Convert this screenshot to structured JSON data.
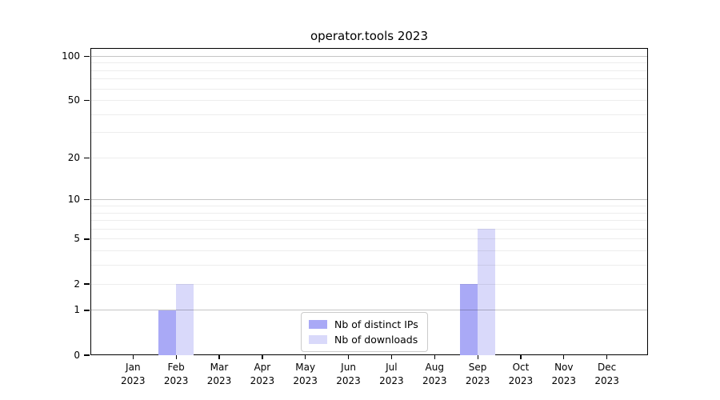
{
  "title": "operator.tools 2023",
  "colors": {
    "background": "#ffffff",
    "bar_distinct_ips": "#a9a9f6",
    "bar_downloads": "#d9d9fa",
    "grid_major": "#c4c4c4",
    "grid_minor": "#ececec",
    "axis": "#000000",
    "legend_border": "#cbcbcb"
  },
  "legend": {
    "items": [
      {
        "label": "Nb of distinct IPs",
        "swatch": "bar-swatch"
      },
      {
        "label": "Nb of downloads",
        "swatch": "bar-swatch"
      }
    ],
    "position": "lower center"
  },
  "chart_data": {
    "type": "bar",
    "title": "operator.tools 2023",
    "categories": [
      "Jan 2023",
      "Feb 2023",
      "Mar 2023",
      "Apr 2023",
      "May 2023",
      "Jun 2023",
      "Jul 2023",
      "Aug 2023",
      "Sep 2023",
      "Oct 2023",
      "Nov 2023",
      "Dec 2023"
    ],
    "series": [
      {
        "name": "Nb of distinct IPs",
        "color": "#a9a9f6",
        "values": [
          0,
          1,
          0,
          0,
          0,
          0,
          0,
          0,
          2,
          0,
          0,
          0
        ]
      },
      {
        "name": "Nb of downloads",
        "color": "#d9d9fa",
        "values": [
          0,
          2,
          0,
          0,
          0,
          0,
          0,
          0,
          6,
          0,
          0,
          0
        ]
      }
    ],
    "xlabel": "",
    "ylabel": "",
    "yscale": "log1p",
    "ylim": [
      0,
      117
    ],
    "y_tick_values": [
      0,
      1,
      2,
      5,
      10,
      20,
      50,
      100
    ],
    "y_tick_labels": [
      "0",
      "1",
      "2",
      "5",
      "10",
      "20",
      "50",
      "100"
    ],
    "y_major_gridlines": [
      1,
      10,
      100
    ],
    "y_minor_gridlines": [
      2,
      3,
      4,
      5,
      6,
      7,
      8,
      9,
      20,
      30,
      40,
      50,
      60,
      70,
      80,
      90
    ],
    "grid": "horizontal",
    "legend_position": "lower center"
  }
}
